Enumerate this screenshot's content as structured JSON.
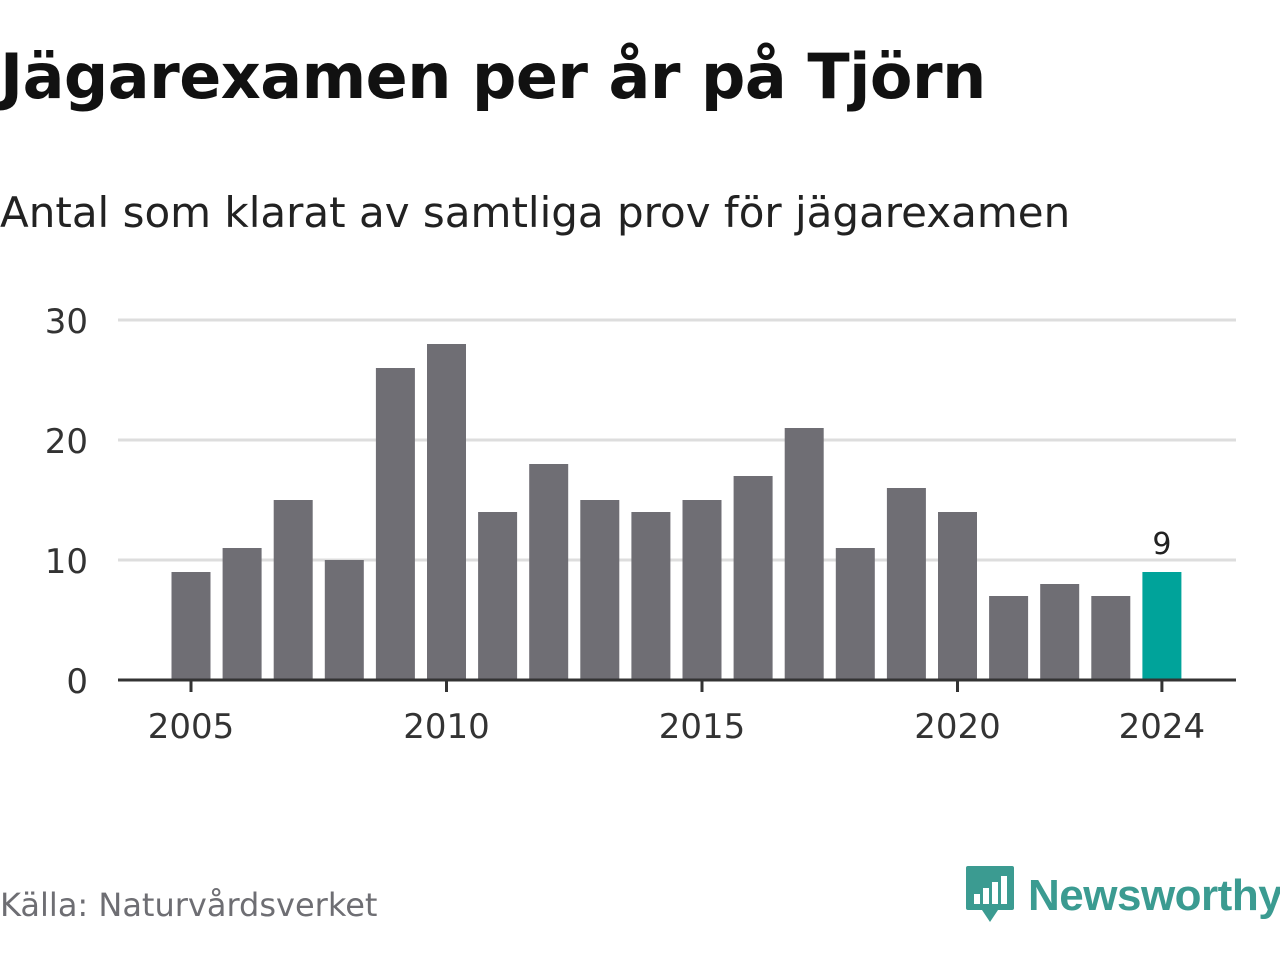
{
  "header": {
    "title": "Jägarexamen per år på Tjörn",
    "subtitle": "Antal som klarat av samtliga prov för jägarexamen"
  },
  "footer": {
    "source": "Källa: Naturvårdsverket",
    "brand": "Newsworthy",
    "brand_icon": "newsworthy-logo-icon"
  },
  "colors": {
    "bar": "#6f6e74",
    "highlight": "#00a39a",
    "grid": "#dddddd",
    "axis": "#333333",
    "brand": "#3b9b91"
  },
  "chart_data": {
    "type": "bar",
    "categories": [
      2005,
      2006,
      2007,
      2008,
      2009,
      2010,
      2011,
      2012,
      2013,
      2014,
      2015,
      2016,
      2017,
      2018,
      2019,
      2020,
      2021,
      2022,
      2023,
      2024
    ],
    "values": [
      9,
      11,
      15,
      10,
      26,
      28,
      14,
      18,
      15,
      14,
      15,
      17,
      21,
      11,
      16,
      14,
      7,
      8,
      7,
      9
    ],
    "highlight_category": 2024,
    "data_labels": [
      {
        "category": 2024,
        "label": "9"
      }
    ],
    "x_ticks": [
      2005,
      2010,
      2015,
      2020,
      2024
    ],
    "y_ticks": [
      0,
      10,
      20,
      30
    ],
    "ylim": [
      0,
      30
    ],
    "xlabel": "",
    "ylabel": "",
    "grid": true,
    "legend": false
  }
}
